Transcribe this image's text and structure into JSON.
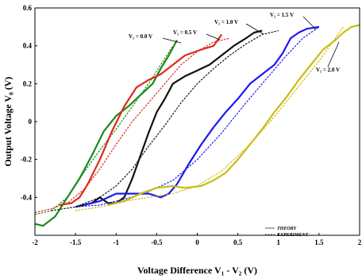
{
  "chart_data": {
    "type": "line",
    "title": "",
    "xlabel": "Voltage Difference V₁ - V₂ (V)",
    "ylabel": "Output Voltage V₀ (V)",
    "xlim": [
      -2,
      2
    ],
    "ylim": [
      -0.6,
      0.6
    ],
    "x_ticks": [
      "-2",
      "-1.5",
      "-1",
      "-0.5",
      "0",
      "0.5",
      "1",
      "1.5",
      "2"
    ],
    "y_ticks": [
      "0.6",
      "0.4",
      "0.2",
      "0",
      "-0.2",
      "-0.4"
    ],
    "grid": false,
    "legend": {
      "placement": "bottom-right",
      "entries": [
        {
          "label": "THEORY",
          "style": "solid"
        },
        {
          "label": "EXPERIMENT",
          "style": "dashed"
        }
      ]
    },
    "annotations": [
      "V₁ = 0.0 V",
      "V₁ = 0.5 V",
      "V₁ = 1.0 V",
      "V₁ = 1.5 V",
      "V₁ = 2.0 V"
    ],
    "series": [
      {
        "color": "#1a8a1a",
        "style": "solid",
        "points": [
          [
            -2.0,
            -0.54
          ],
          [
            -1.9,
            -0.55
          ],
          [
            -1.75,
            -0.5
          ],
          [
            -1.6,
            -0.4
          ],
          [
            -1.45,
            -0.3
          ],
          [
            -1.3,
            -0.18
          ],
          [
            -1.15,
            -0.05
          ],
          [
            -1.0,
            0.03
          ],
          [
            -0.85,
            0.08
          ],
          [
            -0.7,
            0.14
          ],
          [
            -0.55,
            0.2
          ],
          [
            -0.45,
            0.28
          ],
          [
            -0.35,
            0.35
          ],
          [
            -0.25,
            0.43
          ]
        ]
      },
      {
        "color": "#1a8a1a",
        "style": "dashed",
        "points": [
          [
            -2.0,
            -0.49
          ],
          [
            -1.8,
            -0.47
          ],
          [
            -1.6,
            -0.4
          ],
          [
            -1.4,
            -0.27
          ],
          [
            -1.2,
            -0.15
          ],
          [
            -1.0,
            -0.04
          ],
          [
            -0.8,
            0.08
          ],
          [
            -0.6,
            0.2
          ],
          [
            -0.45,
            0.3
          ],
          [
            -0.3,
            0.4
          ]
        ]
      },
      {
        "color": "#dd2a1a",
        "style": "solid",
        "points": [
          [
            -1.7,
            -0.44
          ],
          [
            -1.55,
            -0.43
          ],
          [
            -1.45,
            -0.4
          ],
          [
            -1.35,
            -0.33
          ],
          [
            -1.2,
            -0.2
          ],
          [
            -1.05,
            -0.05
          ],
          [
            -0.9,
            0.08
          ],
          [
            -0.75,
            0.18
          ],
          [
            -0.6,
            0.22
          ],
          [
            -0.45,
            0.25
          ],
          [
            -0.3,
            0.3
          ],
          [
            -0.15,
            0.35
          ],
          [
            0.05,
            0.38
          ],
          [
            0.2,
            0.4
          ],
          [
            0.3,
            0.46
          ]
        ]
      },
      {
        "color": "#dd2a1a",
        "style": "dashed",
        "points": [
          [
            -2.0,
            -0.48
          ],
          [
            -1.8,
            -0.46
          ],
          [
            -1.6,
            -0.43
          ],
          [
            -1.4,
            -0.36
          ],
          [
            -1.2,
            -0.25
          ],
          [
            -1.0,
            -0.12
          ],
          [
            -0.8,
            0.0
          ],
          [
            -0.6,
            0.1
          ],
          [
            -0.4,
            0.2
          ],
          [
            -0.2,
            0.3
          ],
          [
            0.0,
            0.37
          ],
          [
            0.2,
            0.42
          ],
          [
            0.4,
            0.44
          ]
        ]
      },
      {
        "color": "#111111",
        "style": "solid",
        "points": [
          [
            -1.5,
            -0.45
          ],
          [
            -1.4,
            -0.44
          ],
          [
            -1.3,
            -0.43
          ],
          [
            -1.2,
            -0.4
          ],
          [
            -1.1,
            -0.43
          ],
          [
            -1.0,
            -0.43
          ],
          [
            -0.9,
            -0.4
          ],
          [
            -0.8,
            -0.3
          ],
          [
            -0.7,
            -0.18
          ],
          [
            -0.6,
            -0.06
          ],
          [
            -0.5,
            0.05
          ],
          [
            -0.4,
            0.12
          ],
          [
            -0.3,
            0.2
          ],
          [
            -0.15,
            0.24
          ],
          [
            0.0,
            0.27
          ],
          [
            0.15,
            0.3
          ],
          [
            0.3,
            0.35
          ],
          [
            0.45,
            0.4
          ],
          [
            0.6,
            0.44
          ],
          [
            0.7,
            0.47
          ],
          [
            0.8,
            0.48
          ]
        ]
      },
      {
        "color": "#111111",
        "style": "dashed",
        "points": [
          [
            -1.8,
            -0.47
          ],
          [
            -1.5,
            -0.45
          ],
          [
            -1.2,
            -0.4
          ],
          [
            -1.0,
            -0.34
          ],
          [
            -0.8,
            -0.25
          ],
          [
            -0.6,
            -0.13
          ],
          [
            -0.4,
            -0.02
          ],
          [
            -0.2,
            0.1
          ],
          [
            0.0,
            0.2
          ],
          [
            0.2,
            0.28
          ],
          [
            0.4,
            0.35
          ],
          [
            0.6,
            0.41
          ],
          [
            0.8,
            0.46
          ],
          [
            1.0,
            0.48
          ]
        ]
      },
      {
        "color": "#1a1aee",
        "style": "solid",
        "points": [
          [
            -1.4,
            -0.44
          ],
          [
            -1.2,
            -0.42
          ],
          [
            -1.0,
            -0.38
          ],
          [
            -0.8,
            -0.38
          ],
          [
            -0.6,
            -0.38
          ],
          [
            -0.45,
            -0.4
          ],
          [
            -0.35,
            -0.38
          ],
          [
            -0.25,
            -0.33
          ],
          [
            -0.1,
            -0.22
          ],
          [
            0.05,
            -0.12
          ],
          [
            0.2,
            -0.03
          ],
          [
            0.35,
            0.05
          ],
          [
            0.5,
            0.12
          ],
          [
            0.65,
            0.2
          ],
          [
            0.8,
            0.25
          ],
          [
            0.95,
            0.3
          ],
          [
            1.05,
            0.36
          ],
          [
            1.15,
            0.44
          ],
          [
            1.25,
            0.47
          ],
          [
            1.35,
            0.49
          ],
          [
            1.5,
            0.5
          ]
        ]
      },
      {
        "color": "#1a1aee",
        "style": "dashed",
        "points": [
          [
            -1.5,
            -0.45
          ],
          [
            -1.2,
            -0.44
          ],
          [
            -0.9,
            -0.41
          ],
          [
            -0.6,
            -0.37
          ],
          [
            -0.3,
            -0.31
          ],
          [
            0.0,
            -0.2
          ],
          [
            0.3,
            -0.06
          ],
          [
            0.6,
            0.1
          ],
          [
            0.9,
            0.25
          ],
          [
            1.1,
            0.35
          ],
          [
            1.3,
            0.44
          ],
          [
            1.5,
            0.5
          ]
        ]
      },
      {
        "color": "#c8be14",
        "style": "solid",
        "points": [
          [
            -1.1,
            -0.44
          ],
          [
            -0.9,
            -0.42
          ],
          [
            -0.7,
            -0.38
          ],
          [
            -0.5,
            -0.35
          ],
          [
            -0.3,
            -0.34
          ],
          [
            -0.15,
            -0.35
          ],
          [
            0.05,
            -0.34
          ],
          [
            0.2,
            -0.31
          ],
          [
            0.35,
            -0.27
          ],
          [
            0.5,
            -0.2
          ],
          [
            0.65,
            -0.12
          ],
          [
            0.8,
            -0.04
          ],
          [
            0.95,
            0.05
          ],
          [
            1.1,
            0.13
          ],
          [
            1.25,
            0.22
          ],
          [
            1.4,
            0.3
          ],
          [
            1.55,
            0.38
          ],
          [
            1.7,
            0.43
          ],
          [
            1.8,
            0.47
          ],
          [
            1.9,
            0.5
          ],
          [
            2.0,
            0.51
          ]
        ]
      },
      {
        "color": "#c8be14",
        "style": "dashed",
        "points": [
          [
            -1.5,
            -0.47
          ],
          [
            -1.2,
            -0.45
          ],
          [
            -0.9,
            -0.42
          ],
          [
            -0.6,
            -0.4
          ],
          [
            -0.3,
            -0.38
          ],
          [
            0.0,
            -0.34
          ],
          [
            0.3,
            -0.26
          ],
          [
            0.6,
            -0.14
          ],
          [
            0.9,
            0.0
          ],
          [
            1.2,
            0.16
          ],
          [
            1.5,
            0.32
          ],
          [
            1.7,
            0.44
          ],
          [
            1.8,
            0.5
          ]
        ]
      }
    ]
  }
}
